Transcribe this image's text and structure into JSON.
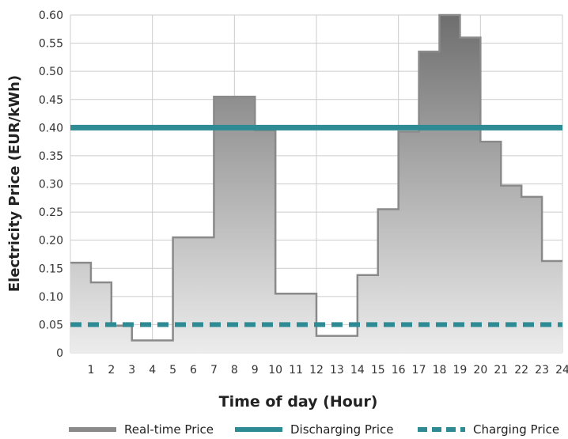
{
  "chart_data": {
    "type": "line",
    "title": "",
    "xlabel": "Time of day (Hour)",
    "ylabel": "Electricity Price (EUR/kWh)",
    "xlim": [
      0,
      24
    ],
    "ylim": [
      0,
      0.6
    ],
    "x_ticks": [
      "1",
      "2",
      "3",
      "4",
      "5",
      "6",
      "7",
      "8",
      "9",
      "10",
      "11",
      "12",
      "13",
      "14",
      "15",
      "16",
      "17",
      "18",
      "19",
      "20",
      "21",
      "22",
      "23",
      "24"
    ],
    "y_ticks": [
      "0",
      "0.05",
      "0.10",
      "0.15",
      "0.20",
      "0.25",
      "0.30",
      "0.35",
      "0.40",
      "0.45",
      "0.50",
      "0.55",
      "0.60"
    ],
    "grid": true,
    "legend_position": "bottom",
    "series": [
      {
        "name": "Real-time Price",
        "style": "step",
        "color": "#8a8a8a",
        "values": [
          0.16,
          0.125,
          0.048,
          0.022,
          0.022,
          0.205,
          0.205,
          0.455,
          0.455,
          0.395,
          0.105,
          0.105,
          0.03,
          0.03,
          0.138,
          0.255,
          0.393,
          0.535,
          0.6,
          0.56,
          0.375,
          0.297,
          0.277,
          0.163
        ]
      },
      {
        "name": "Discharging Price",
        "style": "solid",
        "color": "#2e8b94",
        "value": 0.4
      },
      {
        "name": "Charging Price",
        "style": "dashed",
        "color": "#2e8b94",
        "value": 0.05
      }
    ]
  }
}
